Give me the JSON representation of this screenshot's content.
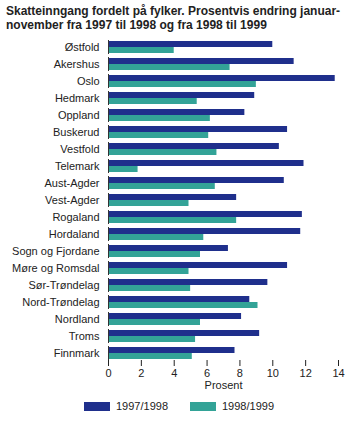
{
  "chart_data": {
    "type": "bar",
    "orientation": "horizontal",
    "title": "Skatteinngang fordelt på fylker. Prosentvis endring januar-november fra 1997 til 1998 og fra 1998 til 1999",
    "x_label": "Prosent",
    "categories": [
      "Østfold",
      "Akershus",
      "Oslo",
      "Hedmark",
      "Oppland",
      "Buskerud",
      "Vestfold",
      "Telemark",
      "Aust-Agder",
      "Vest-Agder",
      "Rogaland",
      "Hordaland",
      "Sogn og Fjordane",
      "Møre og Romsdal",
      "Sør-Trøndelag",
      "Nord-Trøndelag",
      "Nordland",
      "Troms",
      "Finnmark"
    ],
    "series": [
      {
        "name": "1997/1998",
        "color": "#1f2f8c",
        "values": [
          10.0,
          11.3,
          13.8,
          8.9,
          8.3,
          10.9,
          10.4,
          11.9,
          10.7,
          7.8,
          11.8,
          11.7,
          7.3,
          10.9,
          9.7,
          8.6,
          8.1,
          9.2,
          7.7
        ]
      },
      {
        "name": "1998/1999",
        "color": "#33a397",
        "values": [
          4.0,
          7.4,
          9.0,
          5.4,
          6.2,
          6.1,
          6.6,
          1.8,
          6.5,
          4.9,
          7.8,
          5.8,
          5.6,
          4.9,
          5.0,
          9.1,
          5.6,
          5.3,
          5.1
        ]
      }
    ],
    "xlim": [
      0,
      14
    ],
    "xticks": [
      0,
      2,
      4,
      6,
      8,
      10,
      12,
      14
    ],
    "grid": false,
    "legend": "bottom"
  }
}
